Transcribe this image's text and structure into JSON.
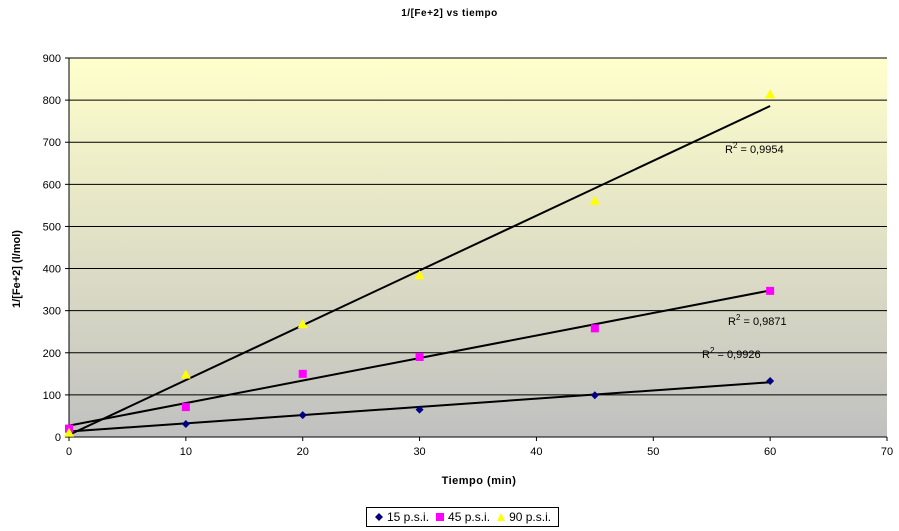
{
  "chart_data": {
    "type": "scatter",
    "title": "1/[Fe+2] vs tiempo",
    "xlabel": "Tiempo (min)",
    "ylabel": "1/[Fe+2] (l/mol)",
    "xlim": [
      0,
      70
    ],
    "ylim": [
      0,
      900
    ],
    "xticks": [
      "0",
      "10",
      "20",
      "30",
      "40",
      "50",
      "60",
      "70"
    ],
    "yticks": [
      "0",
      "100",
      "200",
      "300",
      "400",
      "500",
      "600",
      "700",
      "800",
      "900"
    ],
    "legend_position": "bottom",
    "grid": "horizontal",
    "series": [
      {
        "name": "15 p.s.i.",
        "marker": "diamond",
        "color": "#000080",
        "x": [
          0,
          10,
          20,
          30,
          45,
          60
        ],
        "y": [
          12,
          31,
          52,
          65,
          99,
          133
        ],
        "trendline": {
          "x0": 0,
          "y0": 13,
          "x1": 60,
          "y1": 130,
          "r2_label": "R2 = 0,9926"
        }
      },
      {
        "name": "45 p.s.i.",
        "marker": "square",
        "color": "#ff00ff",
        "x": [
          0,
          10,
          20,
          30,
          45,
          60
        ],
        "y": [
          20,
          71,
          150,
          190,
          258,
          347
        ],
        "trendline": {
          "x0": 0,
          "y0": 27,
          "x1": 60,
          "y1": 348,
          "r2_label": "R2 = 0,9871"
        }
      },
      {
        "name": "90 p.s.i.",
        "marker": "triangle",
        "color": "#ffff00",
        "x": [
          0,
          10,
          20,
          30,
          45,
          60
        ],
        "y": [
          10,
          148,
          268,
          384,
          561,
          814
        ],
        "trendline": {
          "x0": 0,
          "y0": 5,
          "x1": 60,
          "y1": 786,
          "r2_label": "R2 = 0,9954"
        }
      }
    ],
    "annotations": [
      {
        "text": "R2 = 0,9954",
        "series": "90 p.s.i."
      },
      {
        "text": "R2 = 0,9871",
        "series": "45 p.s.i."
      },
      {
        "text": "R2 = 0,9926",
        "series": "15 p.s.i."
      }
    ]
  }
}
